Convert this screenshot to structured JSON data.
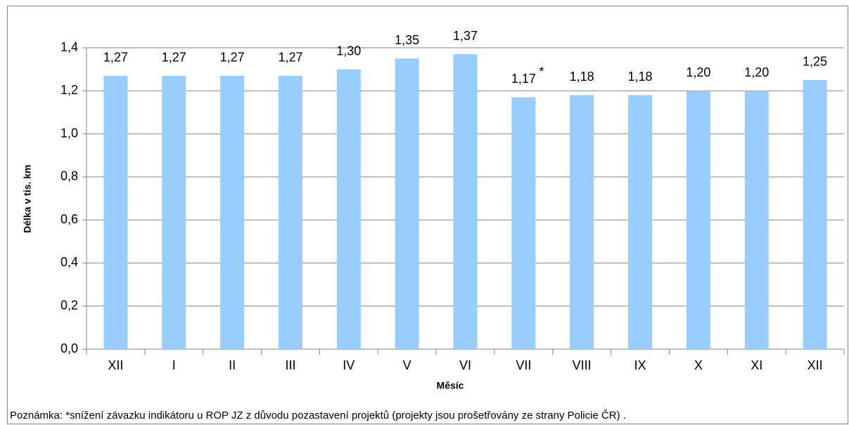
{
  "chart_data": {
    "type": "bar",
    "categories": [
      "XII",
      "I",
      "II",
      "III",
      "IV",
      "V",
      "VI",
      "VII",
      "VIII",
      "IX",
      "X",
      "XI",
      "XII"
    ],
    "values": [
      1.27,
      1.27,
      1.27,
      1.27,
      1.3,
      1.35,
      1.37,
      1.17,
      1.18,
      1.18,
      1.2,
      1.2,
      1.25
    ],
    "value_labels": [
      "1,27",
      "1,27",
      "1,27",
      "1,27",
      "1,30",
      "1,35",
      "1,37",
      "1,17",
      "1,18",
      "1,18",
      "1,20",
      "1,20",
      "1,25"
    ],
    "color": "#99ccff",
    "ylim": [
      0,
      1.4
    ],
    "yticks": [
      {
        "value": 0,
        "label": "0,0"
      },
      {
        "value": 0.2,
        "label": "0,2"
      },
      {
        "value": 0.4,
        "label": "0,4"
      },
      {
        "value": 0.6,
        "label": "0,6"
      },
      {
        "value": 0.8,
        "label": "0,8"
      },
      {
        "value": 1.0,
        "label": "1,0"
      },
      {
        "value": 1.2,
        "label": "1,2"
      },
      {
        "value": 1.4,
        "label": "1,4"
      }
    ],
    "grid": true,
    "xlabel": "Měsíc",
    "ylabel": "Délka v tis. km",
    "annotation": "*",
    "note": "Poznámka: *snížení závazku indikátoru u ROP JZ z důvodu pozastavení projektů (projekty jsou prošetřovány ze strany Policie ČR) ."
  }
}
